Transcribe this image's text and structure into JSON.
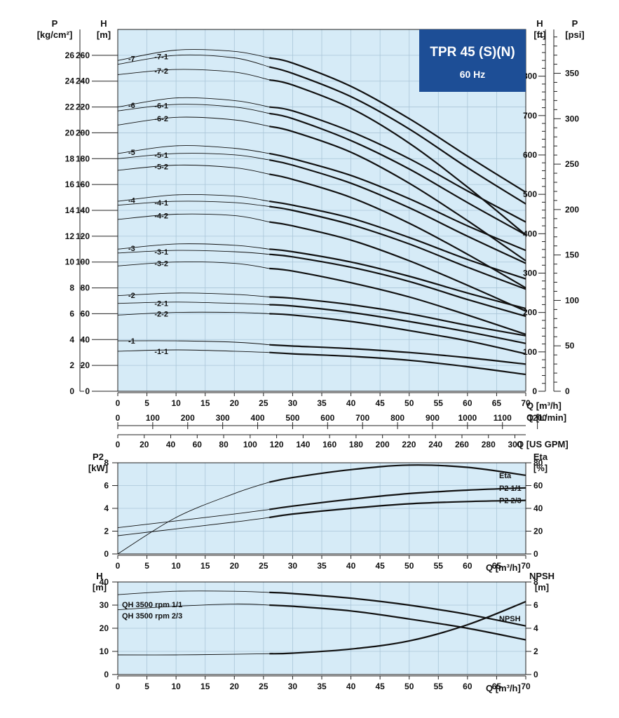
{
  "badge": {
    "title": "TPR 45 (S)(N)",
    "subtitle": "60 Hz",
    "color": "#1d4e96"
  },
  "colors": {
    "plot_bg": "#d6ebf7",
    "grid": "#aac6d8",
    "curve": "#111111"
  },
  "chart_data": [
    {
      "type": "line",
      "name": "head-curves",
      "x_unit": "Q [m³/h]",
      "xlim": [
        0,
        70
      ],
      "ylim": [
        0,
        280
      ],
      "grid": true,
      "axes": {
        "left_H": {
          "title": "H",
          "unit": "[m]",
          "ticks": [
            0,
            20,
            40,
            60,
            80,
            100,
            120,
            140,
            160,
            180,
            200,
            220,
            240,
            260
          ]
        },
        "left_P": {
          "title": "P",
          "unit": "[kg/cm²]",
          "ticks": [
            0,
            2,
            4,
            6,
            8,
            10,
            12,
            14,
            16,
            18,
            20,
            22,
            24,
            26
          ]
        },
        "right_Hft": {
          "title": "H",
          "unit": "[ft]",
          "ticks": [
            0,
            100,
            200,
            300,
            400,
            500,
            600,
            700,
            800
          ]
        },
        "right_Ppsi": {
          "title": "P",
          "unit": "[psi]",
          "ticks": [
            0,
            50,
            100,
            150,
            200,
            250,
            300,
            350
          ]
        },
        "x_m3h": {
          "label": "Q [m³/h]",
          "ticks": [
            0,
            5,
            10,
            15,
            20,
            25,
            30,
            35,
            40,
            45,
            50,
            55,
            60,
            65,
            70
          ]
        },
        "x_lmin": {
          "label": "Q [L/min]",
          "ticks": [
            0,
            100,
            200,
            300,
            400,
            500,
            600,
            700,
            800,
            900,
            1000,
            1100,
            1200
          ]
        },
        "x_usgpm": {
          "label": "Q [US GPM]",
          "ticks": [
            0,
            20,
            40,
            60,
            80,
            100,
            120,
            140,
            160,
            180,
            200,
            220,
            240,
            260,
            280,
            300
          ]
        }
      },
      "series_x": [
        0,
        10,
        20,
        26,
        30,
        40,
        50,
        60,
        70
      ],
      "operating_range_start": 26,
      "series": [
        {
          "name": "-7",
          "values": [
            256,
            264,
            263,
            258,
            254,
            236,
            211,
            182,
            154
          ]
        },
        {
          "name": "-7-1",
          "values": [
            253,
            260,
            258,
            251,
            246,
            228,
            203,
            173,
            145
          ]
        },
        {
          "name": "-7-2",
          "values": [
            245,
            249,
            247,
            241,
            237,
            219,
            192,
            158,
            121
          ]
        },
        {
          "name": "-6",
          "values": [
            220,
            227,
            225,
            220,
            217,
            201,
            180,
            155,
            131
          ]
        },
        {
          "name": "-6-1",
          "values": [
            217,
            222,
            220,
            215,
            211,
            194,
            172,
            146,
            121
          ]
        },
        {
          "name": "-6-2",
          "values": [
            206,
            212,
            210,
            205,
            201,
            185,
            161,
            132,
            101
          ]
        },
        {
          "name": "-5",
          "values": [
            184,
            190,
            188,
            184,
            180,
            167,
            149,
            128,
            109
          ]
        },
        {
          "name": "-5-1",
          "values": [
            180,
            184,
            183,
            179,
            175,
            161,
            142,
            120,
            99
          ]
        },
        {
          "name": "-5-2",
          "values": [
            171,
            175,
            173,
            168,
            164,
            150,
            130,
            106,
            80
          ]
        },
        {
          "name": "-4",
          "values": [
            147,
            152,
            151,
            147,
            144,
            134,
            119,
            102,
            87
          ]
        },
        {
          "name": "-4-1",
          "values": [
            144,
            147,
            146,
            143,
            140,
            129,
            114,
            96,
            79
          ]
        },
        {
          "name": "-4-2",
          "values": [
            133,
            137,
            136,
            131,
            128,
            117,
            101,
            82,
            62
          ]
        },
        {
          "name": "-3",
          "values": [
            110,
            114,
            113,
            110,
            108,
            100,
            89,
            76,
            64
          ]
        },
        {
          "name": "-3-1",
          "values": [
            107,
            109,
            108,
            106,
            104,
            96,
            85,
            71,
            58
          ]
        },
        {
          "name": "-3-2",
          "values": [
            97,
            100,
            99,
            95,
            93,
            84,
            73,
            59,
            44
          ]
        },
        {
          "name": "-2",
          "values": [
            74,
            76,
            75,
            73,
            72,
            67,
            60,
            51,
            43
          ]
        },
        {
          "name": "-2-1",
          "values": [
            68,
            69,
            68,
            67,
            66,
            61,
            54,
            46,
            37
          ]
        },
        {
          "name": "-2-2",
          "values": [
            59,
            61,
            61,
            60,
            59,
            54,
            47,
            39,
            29
          ]
        },
        {
          "name": "-1",
          "values": [
            39,
            39,
            38,
            36,
            35,
            33,
            30,
            26,
            21
          ]
        },
        {
          "name": "-1-1",
          "values": [
            31,
            32,
            31,
            30,
            29,
            27,
            24,
            19,
            13
          ]
        }
      ]
    },
    {
      "type": "line",
      "name": "power-efficiency",
      "xlim": [
        0,
        70
      ],
      "x_label": "Q [m³/h]",
      "x_ticks": [
        0,
        5,
        10,
        15,
        20,
        25,
        30,
        35,
        40,
        45,
        50,
        55,
        60,
        65,
        70
      ],
      "axes": {
        "left": {
          "title": "P2",
          "unit": "[kW]",
          "ylim": [
            0,
            8
          ],
          "ticks": [
            0,
            2,
            4,
            6,
            8
          ]
        },
        "right": {
          "title": "Eta",
          "unit": "[%]",
          "ylim": [
            0,
            80
          ],
          "ticks": [
            0,
            20,
            40,
            60,
            80
          ]
        }
      },
      "operating_range_start": 26,
      "series": [
        {
          "name": "Eta",
          "axis": "right",
          "x": [
            0,
            10,
            20,
            26,
            30,
            40,
            50,
            60,
            70
          ],
          "values": [
            0,
            32,
            53,
            63,
            67,
            74,
            78,
            76,
            69
          ]
        },
        {
          "name": "P2 1/1",
          "axis": "left",
          "x": [
            0,
            10,
            20,
            26,
            30,
            40,
            50,
            60,
            70
          ],
          "values": [
            2.3,
            2.9,
            3.5,
            3.9,
            4.2,
            4.8,
            5.3,
            5.6,
            5.8
          ]
        },
        {
          "name": "P2 2/3",
          "axis": "left",
          "x": [
            0,
            10,
            20,
            26,
            30,
            40,
            50,
            60,
            70
          ],
          "values": [
            1.6,
            2.2,
            2.8,
            3.2,
            3.5,
            4.0,
            4.4,
            4.6,
            4.7
          ]
        }
      ]
    },
    {
      "type": "line",
      "name": "qh-npsh",
      "xlim": [
        0,
        70
      ],
      "x_label": "Q [m³/h]",
      "x_ticks": [
        0,
        5,
        10,
        15,
        20,
        25,
        30,
        35,
        40,
        45,
        50,
        55,
        60,
        65,
        70
      ],
      "axes": {
        "left": {
          "title": "H",
          "unit": "[m]",
          "ylim": [
            0,
            40
          ],
          "ticks": [
            0,
            10,
            20,
            30,
            40
          ]
        },
        "right": {
          "title": "NPSH",
          "unit": "[m]",
          "ylim": [
            0,
            8
          ],
          "ticks": [
            0,
            2,
            4,
            6,
            8
          ]
        }
      },
      "operating_range_start": 26,
      "series": [
        {
          "name": "QH 3500 rpm 1/1",
          "axis": "left",
          "x": [
            0,
            10,
            20,
            26,
            30,
            40,
            50,
            60,
            70
          ],
          "values": [
            34.5,
            36,
            36,
            35.5,
            35,
            33,
            30,
            26,
            21
          ]
        },
        {
          "name": "QH 3500 rpm 2/3",
          "axis": "left",
          "x": [
            0,
            10,
            20,
            26,
            30,
            40,
            50,
            60,
            70
          ],
          "values": [
            28,
            29.5,
            30.5,
            30,
            29.5,
            27.5,
            24,
            20,
            15
          ]
        },
        {
          "name": "NPSH",
          "axis": "right",
          "x": [
            0,
            10,
            20,
            26,
            30,
            40,
            50,
            60,
            70
          ],
          "values": [
            1.7,
            1.7,
            1.75,
            1.8,
            1.85,
            2.2,
            2.9,
            4.3,
            6.3
          ]
        }
      ]
    }
  ]
}
